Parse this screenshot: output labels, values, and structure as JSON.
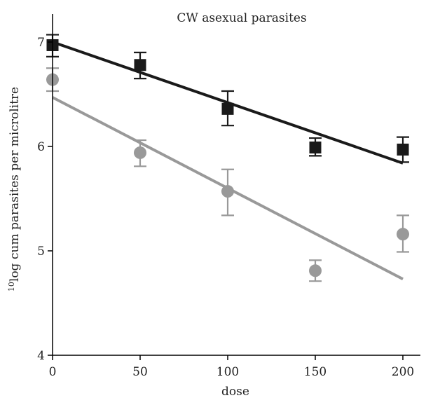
{
  "chart_data": {
    "type": "scatter",
    "title": "CW asexual parasites",
    "xlabel": "dose",
    "ylabel_sup": "10",
    "ylabel_rest": "log cum parasites per microlitre",
    "xlim": [
      0,
      230
    ],
    "ylim": [
      4,
      7.3
    ],
    "xticks": [
      0,
      50,
      100,
      150,
      200
    ],
    "yticks": [
      4,
      5,
      6,
      7
    ],
    "grid": false,
    "legend": "none",
    "series": [
      {
        "marker": "square",
        "color": "#1a1a1a",
        "x": [
          0,
          50,
          100,
          150,
          200
        ],
        "y": [
          6.97,
          6.78,
          6.36,
          5.99,
          5.97
        ],
        "err_low": [
          6.86,
          6.65,
          6.2,
          5.91,
          5.85
        ],
        "err_high": [
          7.07,
          6.9,
          6.53,
          6.08,
          6.09
        ],
        "fit": {
          "x": [
            0,
            200
          ],
          "y": [
            7.0,
            5.84
          ]
        }
      },
      {
        "marker": "circle",
        "color": "#999999",
        "x": [
          0,
          50,
          100,
          150,
          200
        ],
        "y": [
          6.64,
          5.94,
          5.57,
          4.81,
          5.16
        ],
        "err_low": [
          6.53,
          5.81,
          5.34,
          4.71,
          4.99
        ],
        "err_high": [
          6.75,
          6.06,
          5.78,
          4.91,
          5.34
        ],
        "fit": {
          "x": [
            0,
            200
          ],
          "y": [
            6.47,
            4.73
          ]
        }
      }
    ]
  }
}
